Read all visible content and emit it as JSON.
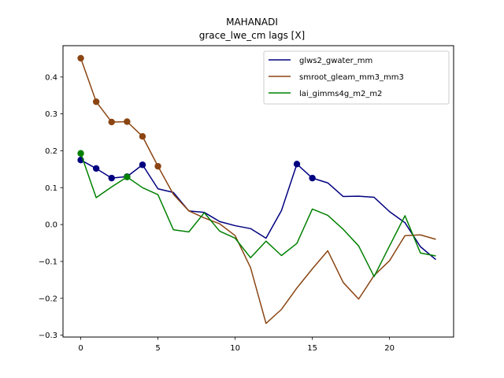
{
  "chart_data": {
    "type": "line",
    "title": "MAHANADI",
    "subtitle": "grace_lwe_cm lags [X]",
    "xlabel": "",
    "ylabel": "",
    "xlim": [
      -1.15,
      24.15
    ],
    "ylim": [
      -0.305,
      0.485
    ],
    "grid": false,
    "legend_position": "top-right",
    "x_ticks": [
      0,
      5,
      10,
      15,
      20
    ],
    "x_tick_labels": [
      "0",
      "5",
      "10",
      "15",
      "20"
    ],
    "y_ticks": [
      -0.3,
      -0.2,
      -0.1,
      0.0,
      0.1,
      0.2,
      0.3,
      0.4
    ],
    "y_tick_labels": [
      "−0.3",
      "−0.2",
      "−0.1",
      "0.0",
      "0.1",
      "0.2",
      "0.3",
      "0.4"
    ],
    "x": [
      0,
      1,
      2,
      3,
      4,
      5,
      6,
      7,
      8,
      9,
      10,
      11,
      12,
      13,
      14,
      15,
      16,
      17,
      18,
      19,
      20,
      21,
      22,
      23
    ],
    "series": [
      {
        "name": "glws2_gwater_mm",
        "color": "#000080",
        "values": [
          0.175,
          0.152,
          0.126,
          0.13,
          0.162,
          0.097,
          0.087,
          0.037,
          0.033,
          0.008,
          -0.003,
          -0.011,
          -0.037,
          0.038,
          0.164,
          0.126,
          0.113,
          0.076,
          0.077,
          0.074,
          0.035,
          0.005,
          -0.06,
          -0.095
        ],
        "markers": [
          0,
          1,
          2,
          3,
          4,
          14,
          15
        ]
      },
      {
        "name": "smroot_gleam_mm3_mm3",
        "color": "#8B4513",
        "values": [
          0.451,
          0.333,
          0.278,
          0.279,
          0.239,
          0.158,
          0.082,
          0.037,
          0.018,
          0.002,
          -0.03,
          -0.117,
          -0.268,
          -0.23,
          -0.172,
          -0.12,
          -0.071,
          -0.157,
          -0.202,
          -0.138,
          -0.098,
          -0.03,
          -0.028,
          -0.04
        ],
        "markers": [
          0,
          1,
          2,
          3,
          4,
          5
        ]
      },
      {
        "name": "lai_gimms4g_m2_m2",
        "color": "#008000",
        "values": [
          0.193,
          0.073,
          0.102,
          0.129,
          0.1,
          0.081,
          -0.014,
          -0.02,
          0.032,
          -0.018,
          -0.037,
          -0.09,
          -0.045,
          -0.084,
          -0.051,
          0.042,
          0.025,
          -0.013,
          -0.058,
          -0.141,
          -0.058,
          0.024,
          -0.077,
          -0.085
        ],
        "markers": [
          0,
          3
        ]
      }
    ]
  }
}
